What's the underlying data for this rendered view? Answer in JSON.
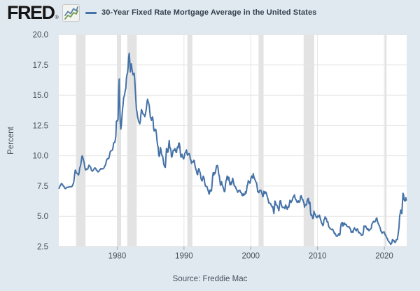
{
  "header": {
    "logo_text": "FRED",
    "registered_mark": "®",
    "logo_icon": "sparkline-chart-icon",
    "legend": {
      "marker_color": "#4572a7",
      "label": "30-Year Fixed Rate Mortgage Average in the United States"
    }
  },
  "footer": {
    "source": "Source: Freddie Mac"
  },
  "chart_data": {
    "type": "line",
    "title": "30-Year Fixed Rate Mortgage Average in the United States",
    "xlabel": "",
    "ylabel": "Percent",
    "grid": true,
    "legend_position": "top-left",
    "plot_background": "#ffffff",
    "page_background": "#e1e9f0",
    "gridline_color": "#e5e5e5",
    "tick_color": "#9aa4ae",
    "line_color": "#4572a7",
    "recession_band_color": "#e3e3e3",
    "xlim": [
      1971.25,
      2023.35
    ],
    "ylim": [
      2.5,
      20.0
    ],
    "yticks": [
      2.5,
      5.0,
      7.5,
      10.0,
      12.5,
      15.0,
      17.5,
      20.0
    ],
    "ytick_labels": [
      "2.5",
      "5.0",
      "7.5",
      "10.0",
      "12.5",
      "15.0",
      "17.5",
      "20.0"
    ],
    "xticks": [
      1980,
      1990,
      2000,
      2010,
      2020
    ],
    "xtick_labels": [
      "1980",
      "1990",
      "2000",
      "2010",
      "2020"
    ],
    "recessions": [
      [
        1973.833,
        1975.25
      ],
      [
        1980.0,
        1980.583
      ],
      [
        1981.5,
        1982.917
      ],
      [
        1990.5,
        1991.25
      ],
      [
        2001.167,
        2001.917
      ],
      [
        2007.917,
        2009.5
      ],
      [
        2020.083,
        2020.333
      ]
    ],
    "series": [
      {
        "name": "30-Year Fixed Rate Mortgage Average in the United States",
        "units": "Percent",
        "frequency": "monthly",
        "x_start": 1971.292,
        "x_step_years": 0.0833333,
        "values": [
          7.31,
          7.42,
          7.53,
          7.6,
          7.7,
          7.69,
          7.63,
          7.55,
          7.48,
          7.44,
          7.33,
          7.3,
          7.29,
          7.37,
          7.37,
          7.4,
          7.4,
          7.42,
          7.42,
          7.43,
          7.44,
          7.44,
          7.44,
          7.46,
          7.54,
          7.65,
          7.73,
          8.05,
          8.5,
          8.82,
          8.77,
          8.58,
          8.54,
          8.54,
          8.46,
          8.41,
          8.58,
          8.97,
          9.09,
          9.28,
          9.59,
          9.96,
          9.98,
          9.79,
          9.62,
          9.43,
          9.1,
          8.89,
          8.82,
          8.91,
          8.89,
          8.89,
          8.94,
          9.13,
          9.22,
          9.15,
          9.1,
          9.02,
          8.81,
          8.76,
          8.73,
          8.77,
          8.85,
          8.93,
          9.0,
          8.98,
          8.93,
          8.81,
          8.79,
          8.72,
          8.67,
          8.69,
          8.75,
          8.83,
          8.86,
          8.94,
          8.94,
          8.9,
          8.92,
          8.92,
          8.96,
          9.02,
          9.16,
          9.2,
          9.36,
          9.57,
          9.71,
          9.74,
          9.79,
          9.76,
          9.86,
          10.11,
          10.35,
          10.39,
          10.41,
          10.43,
          10.5,
          10.69,
          11.04,
          11.09,
          11.09,
          11.3,
          11.64,
          12.83,
          12.9,
          12.88,
          13.04,
          15.28,
          16.33,
          14.26,
          12.71,
          12.19,
          12.56,
          13.2,
          13.79,
          14.21,
          14.79,
          14.9,
          15.13,
          15.4,
          15.58,
          16.4,
          16.7,
          16.83,
          17.29,
          18.16,
          18.45,
          17.83,
          16.92,
          17.4,
          17.6,
          17.16,
          16.89,
          16.68,
          16.7,
          16.82,
          16.27,
          15.43,
          14.61,
          13.83,
          13.62,
          13.25,
          13.04,
          12.8,
          12.78,
          12.63,
          12.87,
          13.43,
          13.81,
          13.73,
          13.54,
          13.44,
          13.42,
          13.37,
          13.23,
          13.39,
          13.65,
          13.94,
          14.42,
          14.67,
          14.47,
          14.35,
          14.13,
          13.64,
          13.18,
          13.08,
          12.92,
          13.17,
          13.2,
          12.91,
          12.22,
          12.03,
          12.19,
          12.19,
          12.14,
          11.78,
          11.26,
          10.88,
          10.71,
          10.08,
          9.94,
          10.14,
          10.68,
          10.51,
          10.2,
          10.01,
          9.97,
          9.7,
          9.31,
          9.2,
          9.08,
          9.04,
          9.83,
          10.6,
          10.54,
          10.28,
          10.33,
          10.89,
          11.26,
          10.65,
          10.64,
          10.43,
          9.89,
          9.93,
          10.2,
          10.46,
          10.46,
          10.43,
          10.6,
          10.48,
          10.3,
          10.27,
          10.61,
          10.73,
          10.65,
          11.03,
          11.05,
          10.77,
          10.2,
          9.88,
          9.99,
          10.13,
          9.95,
          9.77,
          9.74,
          9.9,
          10.2,
          10.27,
          10.37,
          10.48,
          10.16,
          10.04,
          10.1,
          10.18,
          10.17,
          10.01,
          9.67,
          9.64,
          9.37,
          9.5,
          9.5,
          9.47,
          9.62,
          9.58,
          9.24,
          9.01,
          8.86,
          8.71,
          8.5,
          8.43,
          8.76,
          8.94,
          8.85,
          8.67,
          8.51,
          8.13,
          7.98,
          7.92,
          8.09,
          8.31,
          8.22,
          8.02,
          7.68,
          7.5,
          7.47,
          7.47,
          7.42,
          7.21,
          7.11,
          6.92,
          6.83,
          7.16,
          7.17,
          7.06,
          7.15,
          7.68,
          8.32,
          8.6,
          8.4,
          8.61,
          8.51,
          8.64,
          8.93,
          9.17,
          9.2,
          9.15,
          8.83,
          8.46,
          8.32,
          7.96,
          7.57,
          7.61,
          7.86,
          7.64,
          7.48,
          7.38,
          7.2,
          7.03,
          7.08,
          7.62,
          7.93,
          8.07,
          8.32,
          8.25,
          8.0,
          8.23,
          7.92,
          7.62,
          7.6,
          7.82,
          7.65,
          7.9,
          8.14,
          7.94,
          7.69,
          7.5,
          7.48,
          7.43,
          7.29,
          7.21,
          7.1,
          6.99,
          7.04,
          7.13,
          7.14,
          7.14,
          7.0,
          6.95,
          6.92,
          6.72,
          6.71,
          6.87,
          6.74,
          6.79,
          6.81,
          7.04,
          6.92,
          7.15,
          7.55,
          7.63,
          7.94,
          7.82,
          7.85,
          7.74,
          7.91,
          8.21,
          8.33,
          8.24,
          8.15,
          8.52,
          8.29,
          8.15,
          8.03,
          7.91,
          7.8,
          7.75,
          7.38,
          7.03,
          7.05,
          6.95,
          7.08,
          7.15,
          7.16,
          7.13,
          6.95,
          6.82,
          6.62,
          6.66,
          7.07,
          7.0,
          6.89,
          7.01,
          6.99,
          6.81,
          6.65,
          6.49,
          6.29,
          6.09,
          6.11,
          6.07,
          6.05,
          5.92,
          5.84,
          5.75,
          5.81,
          5.48,
          5.23,
          5.63,
          6.26,
          6.15,
          5.95,
          5.93,
          5.88,
          5.71,
          5.64,
          5.45,
          5.83,
          6.27,
          6.29,
          6.06,
          5.87,
          5.75,
          5.72,
          5.73,
          5.75,
          5.71,
          5.63,
          5.93,
          5.86,
          5.72,
          5.58,
          5.7,
          5.82,
          5.77,
          6.07,
          6.33,
          6.27,
          6.15,
          6.25,
          6.32,
          6.51,
          6.6,
          6.68,
          6.76,
          6.52,
          6.4,
          6.36,
          6.24,
          6.14,
          6.22,
          6.29,
          6.16,
          6.18,
          6.26,
          6.66,
          6.7,
          6.57,
          6.38,
          6.38,
          6.21,
          6.1,
          5.76,
          5.92,
          5.97,
          5.92,
          6.04,
          6.32,
          6.43,
          6.48,
          6.04,
          6.2,
          6.09,
          5.29,
          5.05,
          5.13,
          5.0,
          4.81,
          4.86,
          5.42,
          5.22,
          5.19,
          5.06,
          4.95,
          4.88,
          4.93,
          5.03,
          4.99,
          4.97,
          5.1,
          4.89,
          4.74,
          4.56,
          4.43,
          4.35,
          4.23,
          4.3,
          4.71,
          4.76,
          4.95,
          4.84,
          4.84,
          4.64,
          4.51,
          4.55,
          4.27,
          4.11,
          4.07,
          3.99,
          3.96,
          3.92,
          3.89,
          3.95,
          3.91,
          3.8,
          3.68,
          3.55,
          3.6,
          3.5,
          3.38,
          3.35,
          3.35,
          3.41,
          3.53,
          3.57,
          3.45,
          3.54,
          4.07,
          4.37,
          4.46,
          4.49,
          4.19,
          4.26,
          4.46,
          4.43,
          4.3,
          4.34,
          4.34,
          4.19,
          4.16,
          4.13,
          4.12,
          4.16,
          4.04,
          4.0,
          3.86,
          3.67,
          3.71,
          3.77,
          3.67,
          3.84,
          3.98,
          4.05,
          3.91,
          3.89,
          3.8,
          3.94,
          3.96,
          3.87,
          3.66,
          3.69,
          3.61,
          3.6,
          3.57,
          3.44,
          3.44,
          3.46,
          3.47,
          3.77,
          4.2,
          4.15,
          4.17,
          4.2,
          4.05,
          4.01,
          3.9,
          3.97,
          3.88,
          3.81,
          3.9,
          3.92,
          3.95,
          4.03,
          4.33,
          4.44,
          4.47,
          4.59,
          4.57,
          4.53,
          4.55,
          4.63,
          4.83,
          4.87,
          4.64,
          4.46,
          4.37,
          4.27,
          4.14,
          4.07,
          3.8,
          3.77,
          3.62,
          3.61,
          3.69,
          3.7,
          3.72,
          3.62,
          3.47,
          3.45,
          3.31,
          3.23,
          3.16,
          3.02,
          2.94,
          2.89,
          2.83,
          2.77,
          2.68,
          2.74,
          2.81,
          3.08,
          3.06,
          2.96,
          2.98,
          2.87,
          2.84,
          2.9,
          3.07,
          3.07,
          3.1,
          3.45,
          3.76,
          4.17,
          4.98,
          5.23,
          5.52,
          5.41,
          5.22,
          6.11,
          6.9,
          6.81,
          6.36,
          6.27,
          6.26,
          6.54,
          6.34
        ]
      }
    ]
  }
}
